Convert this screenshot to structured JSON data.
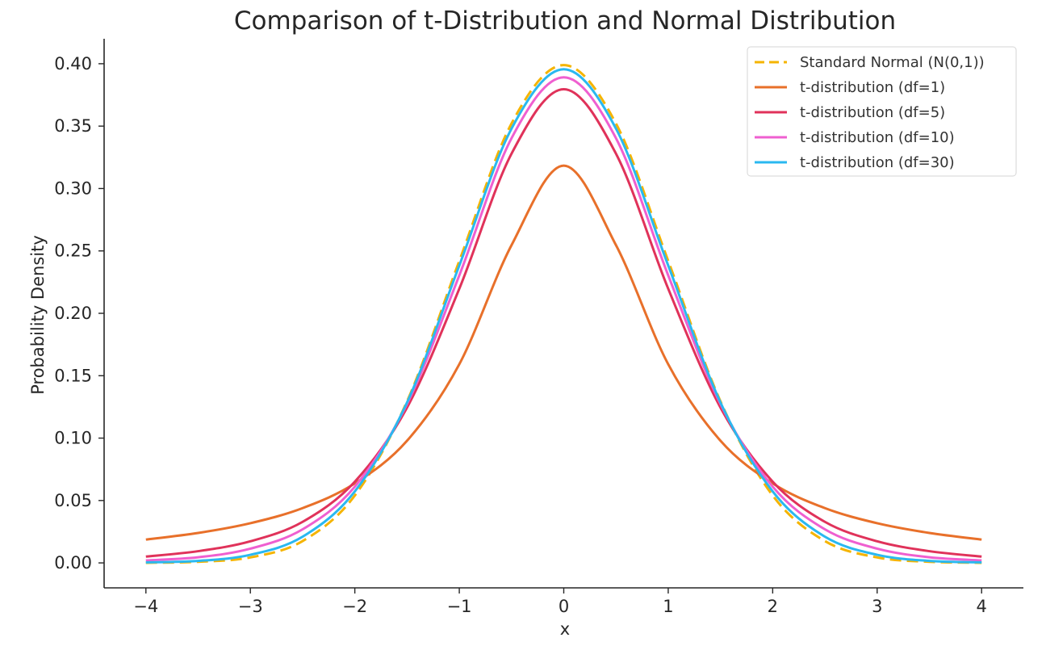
{
  "chart_data": {
    "type": "line",
    "title": "Comparison of t-Distribution and Normal Distribution",
    "xlabel": "x",
    "ylabel": "Probability Density",
    "xlim": [
      -4.4,
      4.4
    ],
    "ylim": [
      -0.02,
      0.42
    ],
    "xticks": [
      -4,
      -3,
      -2,
      -1,
      0,
      1,
      2,
      3,
      4
    ],
    "xtick_labels": [
      "−4",
      "−3",
      "−2",
      "−1",
      "0",
      "1",
      "2",
      "3",
      "4"
    ],
    "yticks": [
      0.0,
      0.05,
      0.1,
      0.15,
      0.2,
      0.25,
      0.3,
      0.35,
      0.4
    ],
    "ytick_labels": [
      "0.00",
      "0.05",
      "0.10",
      "0.15",
      "0.20",
      "0.25",
      "0.30",
      "0.35",
      "0.40"
    ],
    "grid": false,
    "legend_position": "top-right",
    "x": [
      -4,
      -3.5,
      -3,
      -2.5,
      -2,
      -1.5,
      -1,
      -0.5,
      0,
      0.5,
      1,
      1.5,
      2,
      2.5,
      3,
      3.5,
      4
    ],
    "series": [
      {
        "name": "Standard Normal (N(0,1))",
        "color": "#f5b400",
        "style": "dashed",
        "values": [
          0.0001,
          0.0009,
          0.0044,
          0.0175,
          0.054,
          0.1295,
          0.242,
          0.3521,
          0.3989,
          0.3521,
          0.242,
          0.1295,
          0.054,
          0.0175,
          0.0044,
          0.0009,
          0.0001
        ]
      },
      {
        "name": "t-distribution (df=1)",
        "color": "#e8702a",
        "style": "solid",
        "values": [
          0.0187,
          0.024,
          0.0318,
          0.0439,
          0.0637,
          0.0979,
          0.1592,
          0.2546,
          0.3183,
          0.2546,
          0.1592,
          0.0979,
          0.0637,
          0.0439,
          0.0318,
          0.024,
          0.0187
        ]
      },
      {
        "name": "t-distribution (df=5)",
        "color": "#e0325a",
        "style": "solid",
        "values": [
          0.0051,
          0.0094,
          0.0173,
          0.0329,
          0.0651,
          0.1245,
          0.2197,
          0.3279,
          0.3796,
          0.3279,
          0.2197,
          0.1245,
          0.0651,
          0.0329,
          0.0173,
          0.0094,
          0.0051
        ]
      },
      {
        "name": "t-distribution (df=10)",
        "color": "#ef5fd0",
        "style": "solid",
        "values": [
          0.002,
          0.0045,
          0.0114,
          0.0269,
          0.0611,
          0.1274,
          0.2304,
          0.3403,
          0.3891,
          0.3403,
          0.2304,
          0.1274,
          0.0611,
          0.0269,
          0.0114,
          0.0045,
          0.002
        ]
      },
      {
        "name": "t-distribution (df=30)",
        "color": "#2ab8f0",
        "style": "solid",
        "values": [
          0.0004,
          0.0016,
          0.0065,
          0.021,
          0.0573,
          0.1286,
          0.2383,
          0.348,
          0.3956,
          0.348,
          0.2383,
          0.1286,
          0.0573,
          0.021,
          0.0065,
          0.0016,
          0.0004
        ]
      }
    ]
  }
}
